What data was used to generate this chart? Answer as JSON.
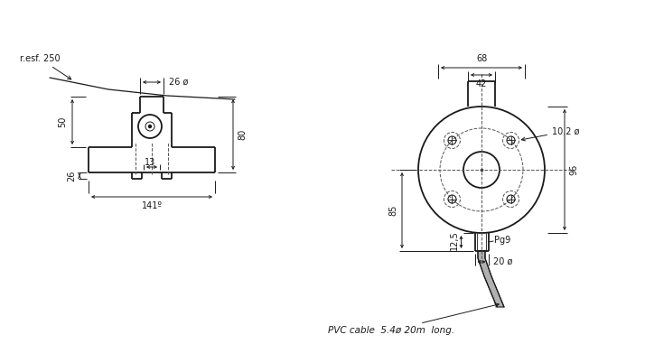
{
  "bg_color": "#ffffff",
  "line_color": "#1a1a1a",
  "dash_color": "#555555",
  "fig_width": 7.14,
  "fig_height": 3.81,
  "dpi": 100,
  "annotations": {
    "resf": "r.esf. 250",
    "dim_26": "26 ø",
    "dim_80": "80",
    "dim_50": "50",
    "dim_26b": "26",
    "dim_13": "13",
    "dim_141": "141º",
    "dim_68": "68",
    "dim_42": "42",
    "dim_10_2": "10.2 ø",
    "dim_96": "96",
    "dim_85": "85",
    "dim_12_5": "12,5",
    "dim_pg9": "Pg9",
    "dim_20": "20 ø",
    "cable_label": "PVC cable  5.4ø 20m  long."
  },
  "lw_main": 1.3,
  "lw_dim": 0.7,
  "lw_dash": 0.7,
  "fs": 7
}
